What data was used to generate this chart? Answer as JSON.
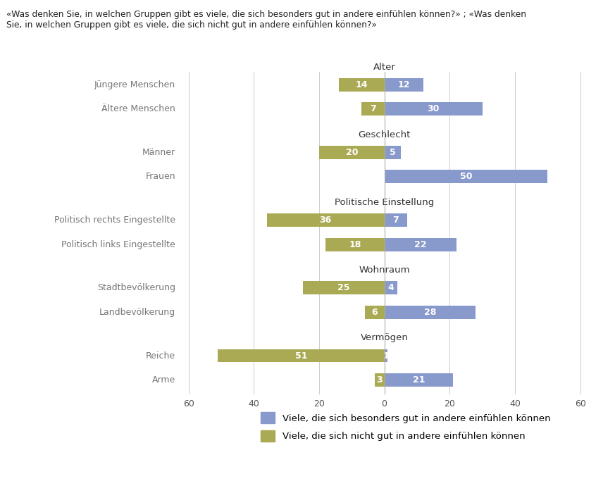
{
  "title": "«Was denken Sie, in welchen Gruppen gibt es viele, die sich besonders gut in andere einfühlen können?» ; «Was denken\nSie, in welchen Gruppen gibt es viele, die sich nicht gut in andere einfühlen können?»",
  "categories": [
    {
      "group": "Alter",
      "label": "Jüngere Menschen",
      "nicht_gut": 14,
      "gut": 12
    },
    {
      "group": "Alter",
      "label": "Ältere Menschen",
      "nicht_gut": 7,
      "gut": 30
    },
    {
      "group": "Geschlecht",
      "label": "Männer",
      "nicht_gut": 20,
      "gut": 5
    },
    {
      "group": "Geschlecht",
      "label": "Frauen",
      "nicht_gut": 0,
      "gut": 50
    },
    {
      "group": "Politische Einstellung",
      "label": "Politisch rechts Eingestellte",
      "nicht_gut": 36,
      "gut": 7
    },
    {
      "group": "Politische Einstellung",
      "label": "Politisch links Eingestellte",
      "nicht_gut": 18,
      "gut": 22
    },
    {
      "group": "Wohnraum",
      "label": "Stadtbevölkerung",
      "nicht_gut": 25,
      "gut": 4
    },
    {
      "group": "Wohnraum",
      "label": "Landbevölkerung",
      "nicht_gut": 6,
      "gut": 28
    },
    {
      "group": "Vermögen",
      "label": "Reiche",
      "nicht_gut": 51,
      "gut": 1
    },
    {
      "group": "Vermögen",
      "label": "Arme",
      "nicht_gut": 3,
      "gut": 21
    }
  ],
  "color_gut": "#8899cc",
  "color_nicht_gut": "#aaaa55",
  "color_text_white": "#ffffff",
  "color_label": "#777777",
  "color_group": "#333333",
  "legend_gut": "Viele, die sich besonders gut in andere einfühlen können",
  "legend_nicht_gut": "Viele, die sich nicht gut in andere einfühlen können",
  "xlim": 65,
  "background": "#ffffff",
  "grid_color": "#cccccc"
}
